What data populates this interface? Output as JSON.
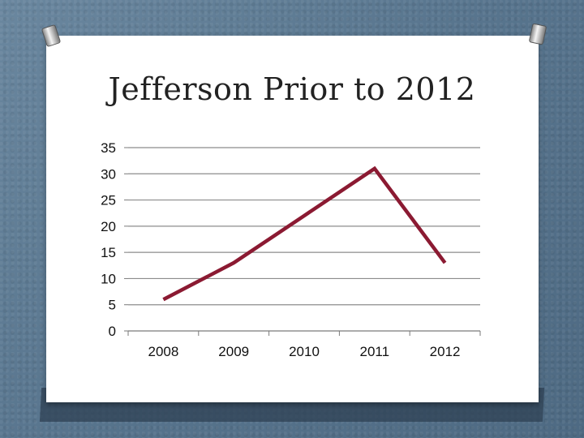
{
  "slide": {
    "title": "Jefferson Prior to 2012"
  },
  "colors": {
    "background": "#5d7a93",
    "slide": "#ffffff",
    "series_line": "#8b1a32",
    "gridline": "#8c8c8c"
  },
  "chart_data": {
    "type": "line",
    "title": "Jefferson Prior to 2012",
    "xlabel": "",
    "ylabel": "",
    "categories": [
      "2008",
      "2009",
      "2010",
      "2011",
      "2012"
    ],
    "series": [
      {
        "values": [
          6,
          13,
          22,
          31,
          13
        ]
      }
    ],
    "ylim": [
      0,
      35
    ],
    "yticks": [
      0,
      5,
      10,
      15,
      20,
      25,
      30,
      35
    ],
    "grid": true,
    "legend": "none"
  }
}
